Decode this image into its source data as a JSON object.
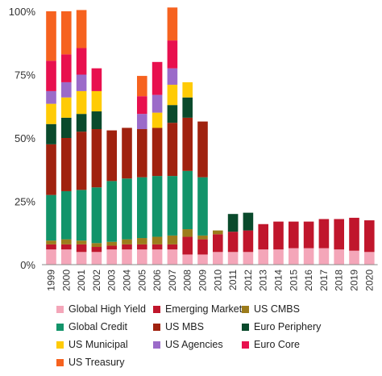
{
  "chart_data": {
    "type": "bar",
    "stacked": true,
    "categories": [
      "1999",
      "2000",
      "2001",
      "2002",
      "2003",
      "2004",
      "2005",
      "2006",
      "2007",
      "2008",
      "2009",
      "2010",
      "2011",
      "2012",
      "2013",
      "2014",
      "2015",
      "2016",
      "2017",
      "2018",
      "2019",
      "2020"
    ],
    "ylim": [
      0,
      100
    ],
    "yticks": [
      "0%",
      "25%",
      "50%",
      "75%",
      "100%"
    ],
    "series": [
      {
        "name": "Global High Yield",
        "color": "#f4a6b9",
        "values": [
          6,
          6,
          5,
          5,
          6,
          6,
          6,
          6,
          6,
          4,
          4,
          5,
          5,
          5,
          6,
          6,
          6.5,
          6.5,
          6.5,
          6,
          5.5,
          5
        ]
      },
      {
        "name": "Emerging Market",
        "color": "#c0162c",
        "values": [
          2,
          2,
          3,
          2,
          1.5,
          2,
          2,
          2,
          2,
          7,
          6,
          7,
          8,
          8.5,
          10,
          11,
          10.5,
          10.5,
          11.5,
          12,
          13,
          12.5
        ]
      },
      {
        "name": "US CMBS",
        "color": "#9c7c1c",
        "values": [
          1.5,
          2,
          1.5,
          1.5,
          1.5,
          2,
          2.5,
          3,
          3.5,
          3,
          1.5,
          1.5,
          0,
          0,
          0,
          0,
          0,
          0,
          0,
          0,
          0,
          0
        ]
      },
      {
        "name": "Global Credit",
        "color": "#12946a",
        "values": [
          18,
          19,
          20,
          22,
          24,
          24,
          24,
          24,
          23.5,
          23,
          23,
          0,
          0,
          0,
          0,
          0,
          0,
          0,
          0,
          0,
          0,
          0
        ]
      },
      {
        "name": "US MBS",
        "color": "#a0220f",
        "values": [
          20,
          21,
          23,
          23,
          20,
          20,
          19,
          19,
          21,
          21,
          22,
          0,
          0,
          0,
          0,
          0,
          0,
          0,
          0,
          0,
          0,
          0
        ]
      },
      {
        "name": "Euro Periphery",
        "color": "#0a4a2c",
        "values": [
          8,
          8,
          7,
          7,
          0,
          0,
          0,
          0,
          7,
          8,
          0,
          0,
          7,
          7,
          0,
          0,
          0,
          0,
          0,
          0,
          0,
          0
        ]
      },
      {
        "name": "US Municipal",
        "color": "#ffcb05",
        "values": [
          8,
          8,
          9,
          8,
          0,
          0,
          0,
          6,
          8,
          6,
          0,
          0,
          0,
          0,
          0,
          0,
          0,
          0,
          0,
          0,
          0,
          0
        ]
      },
      {
        "name": "US Agencies",
        "color": "#9b6bc9",
        "values": [
          5,
          6,
          6.5,
          0,
          0,
          0,
          6,
          7,
          6.5,
          0,
          0,
          0,
          0,
          0,
          0,
          0,
          0,
          0,
          0,
          0,
          0,
          0
        ]
      },
      {
        "name": "Euro Core",
        "color": "#e8104e",
        "values": [
          12,
          11,
          10.5,
          9,
          0,
          0,
          7,
          13,
          11,
          0,
          0,
          0,
          0,
          0,
          0,
          0,
          0,
          0,
          0,
          0,
          0,
          0
        ]
      },
      {
        "name": "US Treasury",
        "color": "#f6621f",
        "values": [
          19.5,
          17,
          15,
          0,
          0,
          0,
          8,
          0,
          13,
          0,
          0,
          0,
          0,
          0,
          0,
          0,
          0,
          0,
          0,
          0,
          0,
          0
        ]
      }
    ],
    "legend_position": "bottom",
    "grid": false
  }
}
